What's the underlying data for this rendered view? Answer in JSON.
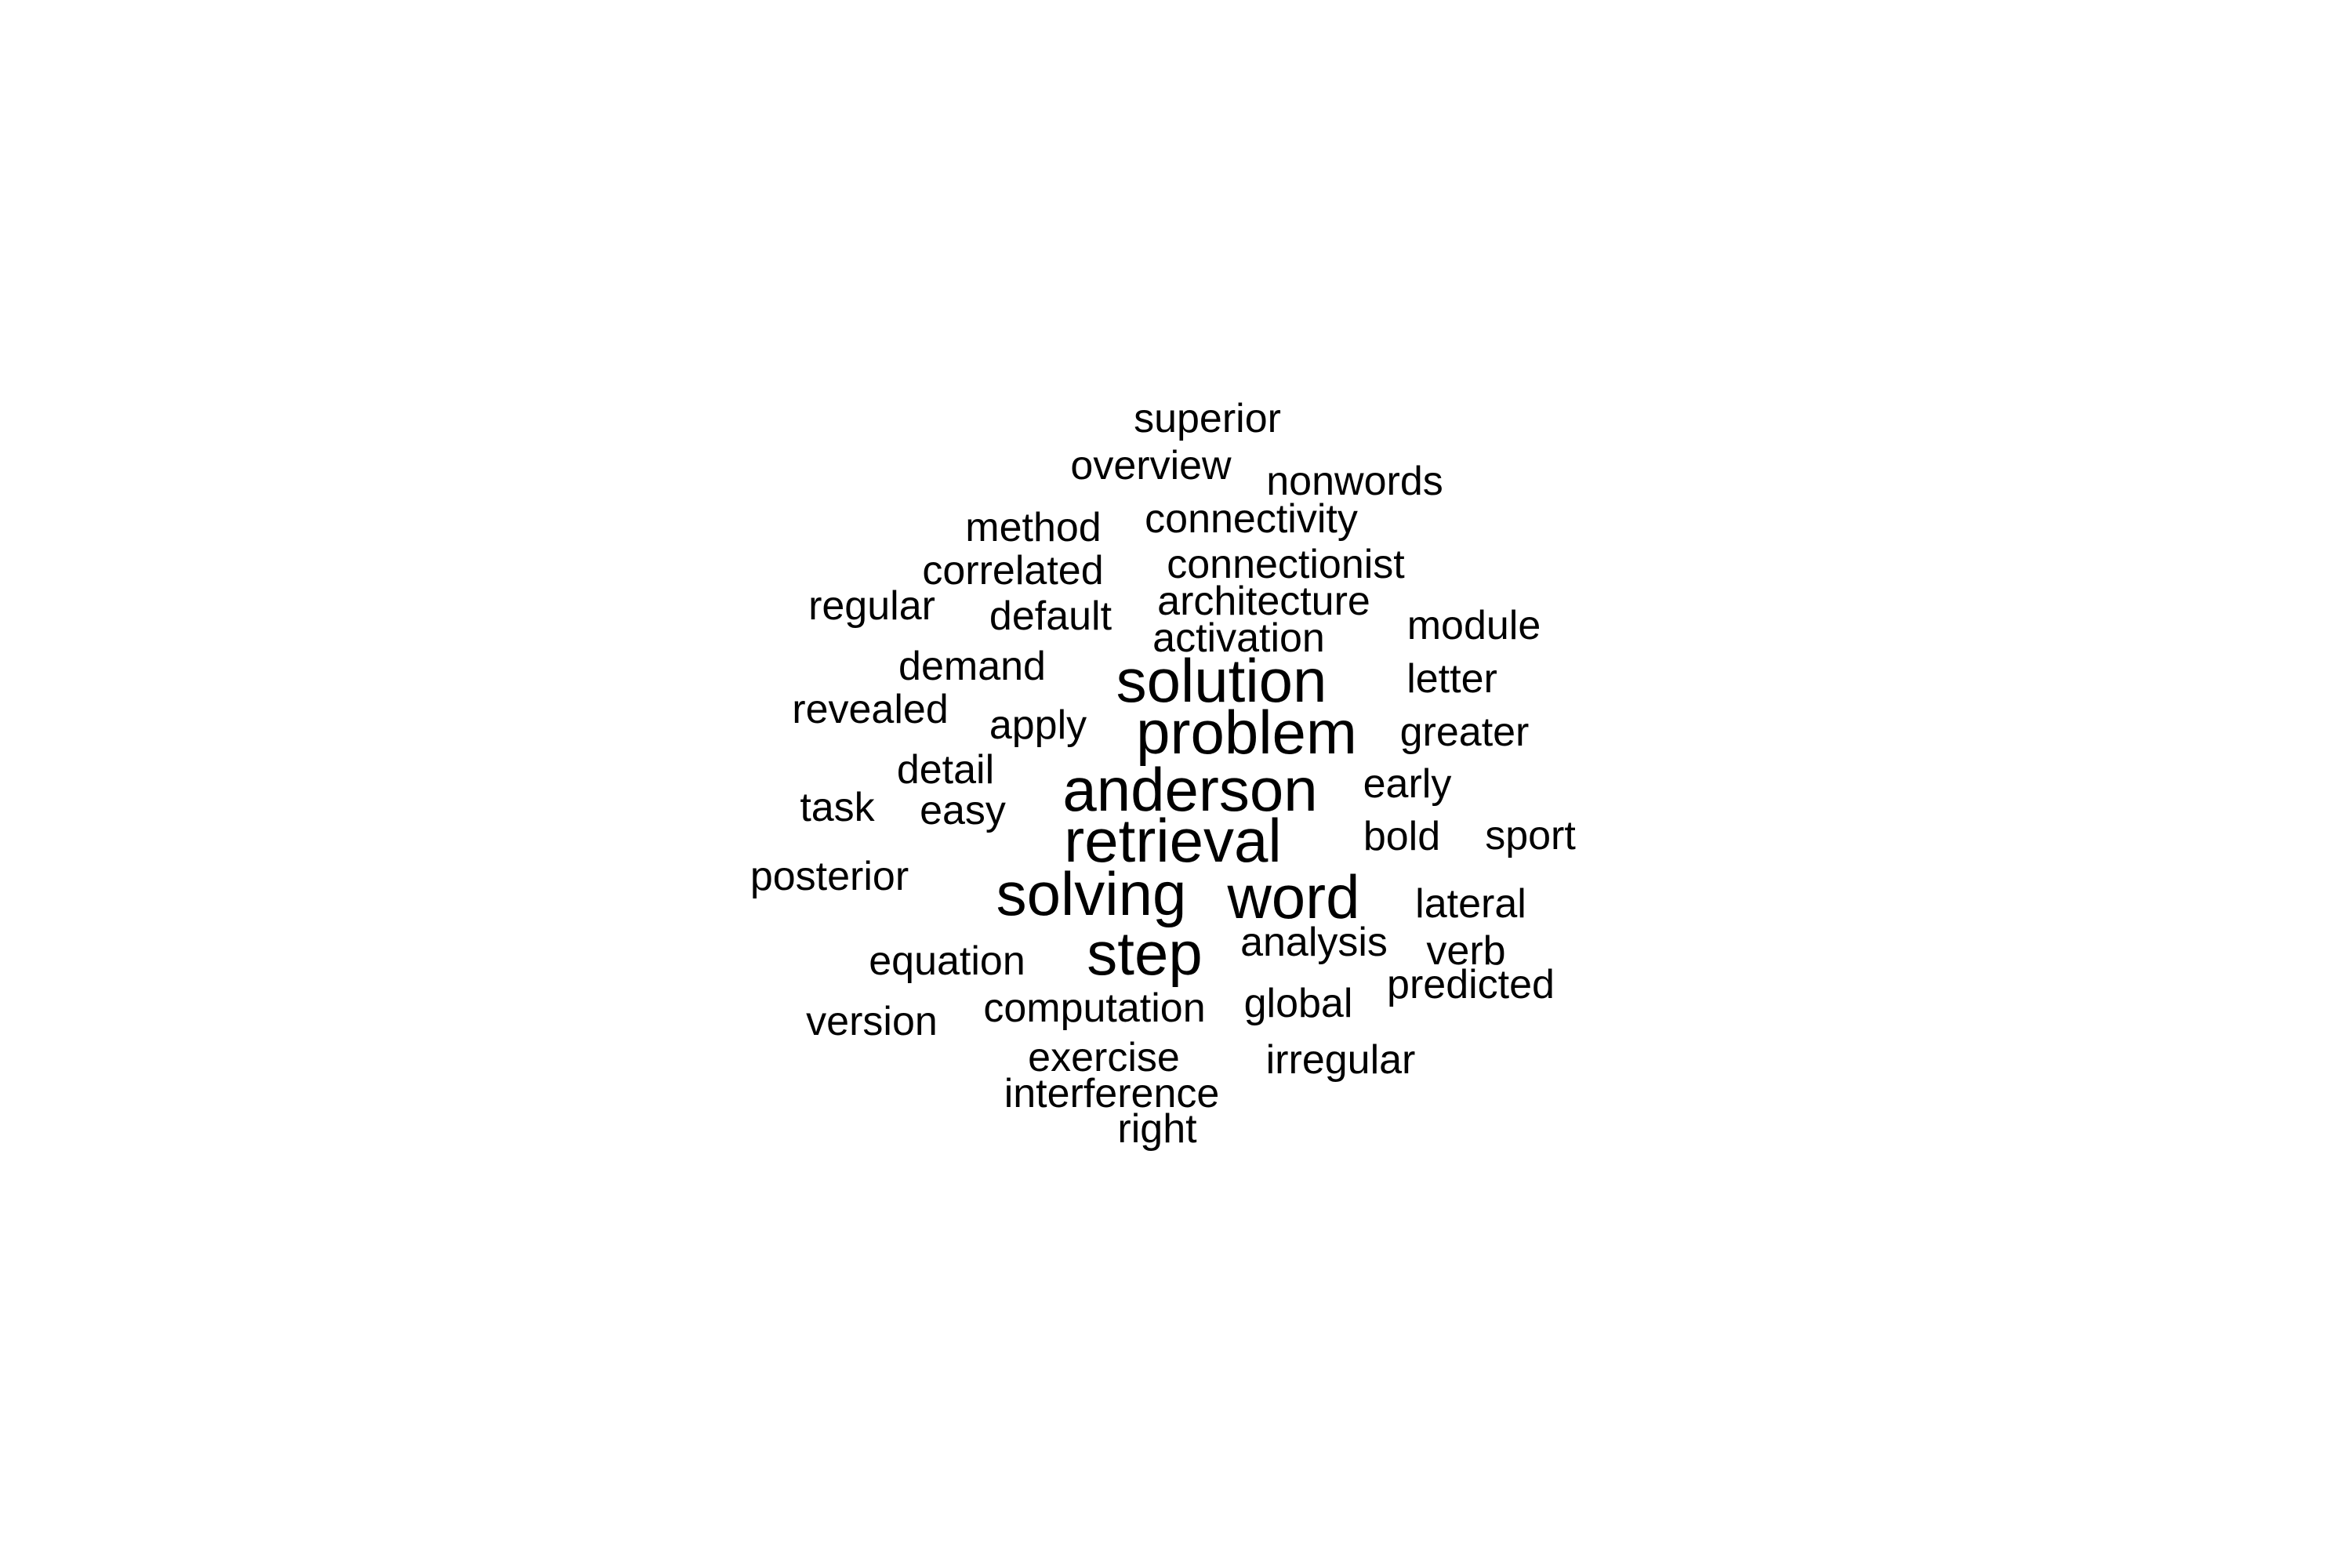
{
  "words": [
    "superior",
    "overview",
    "nonwords",
    "method",
    "connectivity",
    "correlated",
    "connectionist",
    "regular",
    "default",
    "architecture",
    "activation",
    "module",
    "demand",
    "solution",
    "letter",
    "revealed",
    "apply",
    "problem",
    "greater",
    "detail",
    "anderson",
    "early",
    "task",
    "easy",
    "retrieval",
    "bold",
    "sport",
    "posterior",
    "solving",
    "word",
    "lateral",
    "equation",
    "step",
    "analysis",
    "verb",
    "predicted",
    "version",
    "computation",
    "global",
    "exercise",
    "irregular",
    "interference",
    "right"
  ],
  "colors": {
    "text": "#000000",
    "background": "#ffffff"
  }
}
